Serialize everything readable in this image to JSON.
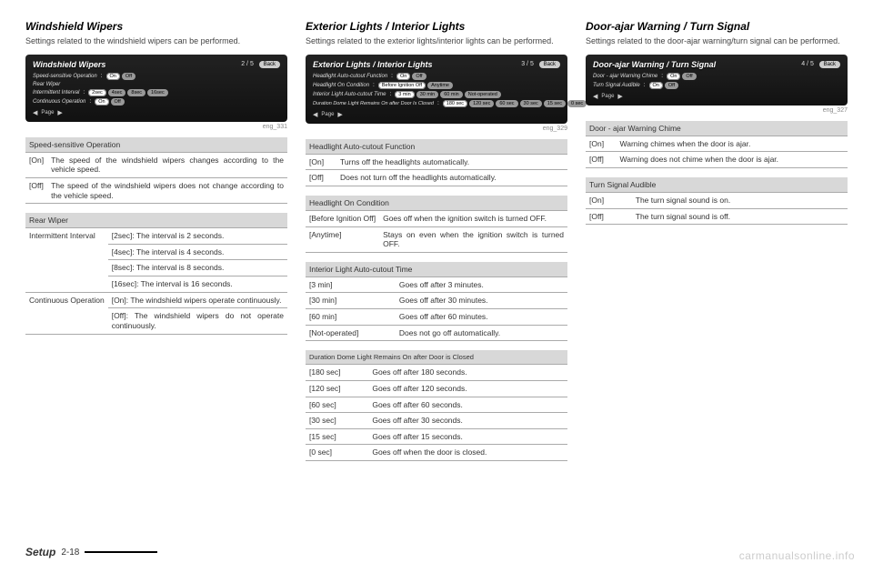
{
  "col1": {
    "heading": "Windshield Wipers",
    "intro": "Settings related to the windshield wipers can be performed.",
    "screen": {
      "title": "Windshield Wipers",
      "pager": "2 / 5",
      "back": "Back",
      "rows": [
        {
          "label": "Speed-sensitive Operation",
          "opts": [
            "On",
            "Off"
          ],
          "sel": 0
        },
        {
          "label": "Rear Wiper",
          "opts": [],
          "sel": -1
        },
        {
          "label": "Intermittent Interval",
          "opts": [
            "2sec",
            "4sec",
            "8sec",
            "16sec"
          ],
          "sel": 0
        },
        {
          "label": "Continuous Operation",
          "opts": [
            "On",
            "Off"
          ],
          "sel": 0
        }
      ],
      "pageLabel": "Page"
    },
    "imgref": "eng_331",
    "tables": [
      {
        "header": "Speed-sensitive Operation",
        "rows": [
          {
            "k": "[On]",
            "v": "The speed of the windshield wipers changes according to the vehicle speed."
          },
          {
            "k": "[Off]",
            "v": "The speed of the windshield wipers does not change according to the vehicle speed."
          }
        ]
      },
      {
        "header": "Rear Wiper",
        "rows": [
          {
            "k": "Intermittent Interval",
            "v": "[2sec]: The interval is 2 seconds."
          },
          {
            "k": "",
            "v": "[4sec]: The interval is 4 seconds."
          },
          {
            "k": "",
            "v": "[8sec]: The interval is 8 seconds."
          },
          {
            "k": "",
            "v": "[16sec]: The interval is 16 seconds."
          },
          {
            "k": "Continuous Operation",
            "v": "[On]: The windshield wipers operate continuously."
          },
          {
            "k": "",
            "v": "[Off]: The windshield wipers do not operate continuously."
          }
        ]
      }
    ]
  },
  "col2": {
    "heading": "Exterior Lights / Interior Lights",
    "intro": "Settings related to the exterior lights/interior lights can be performed.",
    "screen": {
      "title": "Exterior Lights / Interior Lights",
      "pager": "3 / 5",
      "back": "Back",
      "rows": [
        {
          "label": "Headlight Auto-cutout Function",
          "opts": [
            "On",
            "Off"
          ],
          "sel": 0
        },
        {
          "label": "Headlight On Condition",
          "opts": [
            "Before Ignition Off",
            "Anytime"
          ],
          "sel": 0
        },
        {
          "label": "Interior Light Auto-cutout Time",
          "opts": [
            "3 min",
            "30 min",
            "60 min",
            "Not-operated"
          ],
          "sel": 0
        },
        {
          "label": "Duration Dome Light Remains On after Door Is Closed",
          "opts": [
            "180 sec",
            "120 sec",
            "60 sec",
            "30 sec",
            "15 sec",
            "0 sec"
          ],
          "sel": 0
        }
      ],
      "pageLabel": "Page"
    },
    "imgref": "eng_329",
    "tables": [
      {
        "header": "Headlight Auto-cutout Function",
        "rows": [
          {
            "k": "[On]",
            "v": "Turns off the headlights automatically."
          },
          {
            "k": "[Off]",
            "v": "Does not turn off the headlights automatically."
          }
        ]
      },
      {
        "header": "Headlight On Condition",
        "rows": [
          {
            "k": "[Before Ignition Off]",
            "v": "Goes off when the ignition switch is turned OFF."
          },
          {
            "k": "[Anytime]",
            "v": "Stays on even when the ignition switch is turned OFF."
          }
        ]
      },
      {
        "header": "Interior Light Auto-cutout Time",
        "rows": [
          {
            "k": "[3 min]",
            "v": "Goes off after 3 minutes."
          },
          {
            "k": "[30 min]",
            "v": "Goes off after 30 minutes."
          },
          {
            "k": "[60 min]",
            "v": "Goes off after 60 minutes."
          },
          {
            "k": "[Not-operated]",
            "v": "Does not go off automatically."
          }
        ]
      },
      {
        "header": "Duration Dome Light Remains On after Door is Closed",
        "smallhead": true,
        "rows": [
          {
            "k": "[180 sec]",
            "v": "Goes off after 180 seconds."
          },
          {
            "k": "[120 sec]",
            "v": "Goes off after 120 seconds."
          },
          {
            "k": "[60 sec]",
            "v": "Goes off after 60 seconds."
          },
          {
            "k": "[30 sec]",
            "v": "Goes off after 30 seconds."
          },
          {
            "k": "[15 sec]",
            "v": "Goes off after 15 seconds."
          },
          {
            "k": "[0 sec]",
            "v": "Goes off when the door is closed."
          }
        ]
      }
    ]
  },
  "col3": {
    "heading": "Door-ajar Warning / Turn Signal",
    "intro": "Settings related to the door-ajar warning/turn signal can be performed.",
    "screen": {
      "title": "Door-ajar Warning / Turn Signal",
      "pager": "4 / 5",
      "back": "Back",
      "rows": [
        {
          "label": "Door - ajar Warning Chime",
          "opts": [
            "On",
            "Off"
          ],
          "sel": 0
        },
        {
          "label": "Turn Signal Audible",
          "opts": [
            "On",
            "Off"
          ],
          "sel": 0
        }
      ],
      "pageLabel": "Page"
    },
    "imgref": "eng_327",
    "tables": [
      {
        "header": "Door - ajar Warning Chime",
        "rows": [
          {
            "k": "[On]",
            "v": "Warning chimes when the door is ajar."
          },
          {
            "k": "[Off]",
            "v": "Warning does not chime when the door is ajar."
          }
        ]
      },
      {
        "header": "Turn Signal Audible",
        "rows": [
          {
            "k": "[On]",
            "v": "The turn signal sound is on."
          },
          {
            "k": "[Off]",
            "v": "The turn signal sound is off."
          }
        ]
      }
    ]
  },
  "footer": {
    "setup": "Setup",
    "page": "2-18"
  },
  "watermark": "carmanualsonline.info"
}
